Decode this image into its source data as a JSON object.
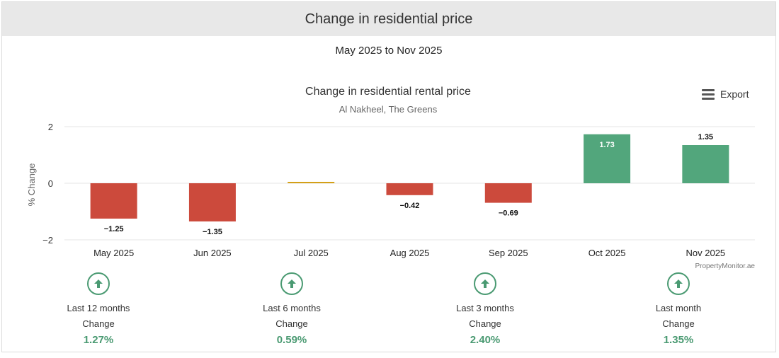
{
  "header": {
    "title": "Change in residential price"
  },
  "subtitle": "May 2025 to Nov 2025",
  "export_label": "Export",
  "icons": {
    "export": "hamburger-menu-icon",
    "trend": "arrow-up-circle-icon"
  },
  "colors": {
    "negative": "#cc4a3c",
    "neutral": "#d4a017",
    "positive": "#52a67c",
    "accent": "#4a9a72"
  },
  "chart_data": {
    "type": "bar",
    "title": "Change in residential rental price",
    "subtitle": "Al Nakheel, The Greens",
    "ylabel": "% Change",
    "xlabel": "",
    "categories": [
      "May 2025",
      "Jun 2025",
      "Jul 2025",
      "Aug 2025",
      "Sep 2025",
      "Oct 2025",
      "Nov 2025"
    ],
    "values": [
      -1.25,
      -1.35,
      0.05,
      -0.42,
      -0.69,
      1.73,
      1.35
    ],
    "data_labels": [
      "−1.25",
      "−1.35",
      "",
      "−0.42",
      "−0.69",
      "1.73",
      "1.35"
    ],
    "yticks": [
      2,
      0,
      -2
    ],
    "ytick_labels": [
      "2",
      "0",
      "−2"
    ],
    "ylim": [
      -2,
      2
    ],
    "grid": true,
    "legend": "none",
    "credits": "PropertyMonitor.ae"
  },
  "stats": [
    {
      "period": "Last 12 months",
      "label": "Change",
      "value": "1.27%"
    },
    {
      "period": "Last 6 months",
      "label": "Change",
      "value": "0.59%"
    },
    {
      "period": "Last 3 months",
      "label": "Change",
      "value": "2.40%"
    },
    {
      "period": "Last month",
      "label": "Change",
      "value": "1.35%"
    }
  ]
}
